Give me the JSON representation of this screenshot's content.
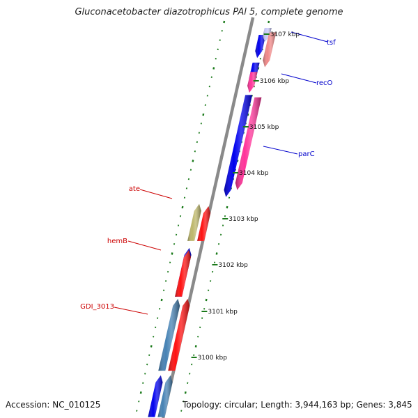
{
  "title": "Gluconacetobacter diazotrophicus PAl 5, complete genome",
  "footer": {
    "accession": "Accession: NC_010125",
    "summary": "Topology: circular; Length: 3,944,163 bp; Genes: 3,845"
  },
  "colors": {
    "backbone": "#8a8a8a",
    "ticks": "#1a7a1a",
    "cds_blue": "#0000ee",
    "cds_pink": "#ff3399",
    "cds_red": "#ff1111",
    "cds_steel": "#4682b4",
    "cds_khaki": "#bdb76b",
    "cds_lightpink": "#f08888",
    "cds_lavender": "#c8c8f8",
    "label_blue": "#0000cc",
    "label_red": "#cc0000",
    "tick_label": "#111111"
  },
  "scale_labels": [
    "3107 kbp",
    "3106 kbp",
    "3105 kbp",
    "3104 kbp",
    "3103 kbp",
    "3102 kbp",
    "3101 kbp",
    "3100 kbp"
  ],
  "gene_labels": [
    {
      "name": "tsf",
      "side": "right",
      "color": "label_blue"
    },
    {
      "name": "recO",
      "side": "right",
      "color": "label_blue"
    },
    {
      "name": "parC",
      "side": "right",
      "color": "label_blue"
    },
    {
      "name": "ate",
      "side": "left",
      "color": "label_red"
    },
    {
      "name": "hemB",
      "side": "left",
      "color": "label_red"
    },
    {
      "name": "GDI_3013",
      "side": "left",
      "color": "label_red"
    }
  ],
  "features": [
    {
      "strand": "forward",
      "color": "cds_blue",
      "start_kbp": 3107.25,
      "end_kbp": 3106.75
    },
    {
      "strand": "forward",
      "color": "cds_lavender",
      "start_kbp": 3107.4,
      "end_kbp": 3107.1
    },
    {
      "strand": "forward",
      "color": "cds_lightpink",
      "start_kbp": 3107.3,
      "end_kbp": 3106.55
    },
    {
      "strand": "forward",
      "color": "cds_blue",
      "start_kbp": 3106.65,
      "end_kbp": 3106.15
    },
    {
      "strand": "forward",
      "color": "cds_pink",
      "start_kbp": 3106.45,
      "end_kbp": 3106.0
    },
    {
      "strand": "forward",
      "color": "cds_blue",
      "start_kbp": 3105.95,
      "end_kbp": 3103.75
    },
    {
      "strand": "forward",
      "color": "cds_pink",
      "start_kbp": 3105.9,
      "end_kbp": 3103.9
    },
    {
      "strand": "reverse",
      "color": "cds_khaki",
      "start_kbp": 3103.6,
      "end_kbp": 3102.8
    },
    {
      "strand": "reverse",
      "color": "cds_red",
      "start_kbp": 3103.55,
      "end_kbp": 3102.8
    },
    {
      "strand": "reverse",
      "color": "cds_blue",
      "start_kbp": 3102.65,
      "end_kbp": 3101.6
    },
    {
      "strand": "reverse",
      "color": "cds_red",
      "start_kbp": 3102.6,
      "end_kbp": 3101.6
    },
    {
      "strand": "reverse",
      "color": "cds_steel",
      "start_kbp": 3101.55,
      "end_kbp": 3100.0
    },
    {
      "strand": "reverse",
      "color": "cds_red",
      "start_kbp": 3101.55,
      "end_kbp": 3100.0
    },
    {
      "strand": "reverse",
      "color": "cds_blue",
      "start_kbp": 3099.9,
      "end_kbp": 3099.0
    },
    {
      "strand": "reverse",
      "color": "cds_steel",
      "start_kbp": 3099.9,
      "end_kbp": 3099.0
    }
  ]
}
